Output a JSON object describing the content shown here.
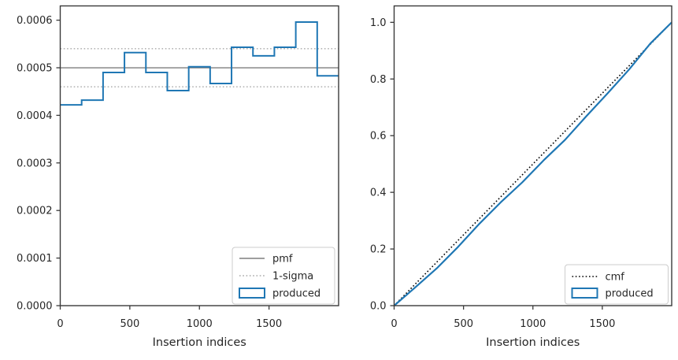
{
  "figure": {
    "background": "#ffffff",
    "spine_color": "#3a3a3a",
    "text_color": "#262626"
  },
  "chart_data": [
    {
      "type": "bar",
      "subtype": "step-histogram",
      "title": "",
      "xlabel": "Insertion indices",
      "ylabel": "",
      "xlim": [
        0,
        2000
      ],
      "ylim": [
        0,
        0.00063
      ],
      "grid": false,
      "xticks": {
        "values": [
          0,
          500,
          1000,
          1500
        ],
        "labels": [
          "0",
          "500",
          "1000",
          "1500"
        ]
      },
      "yticks": {
        "values": [
          0,
          0.0001,
          0.0002,
          0.0003,
          0.0004,
          0.0005,
          0.0006
        ],
        "labels": [
          "0.0000",
          "0.0001",
          "0.0002",
          "0.0003",
          "0.0004",
          "0.0005",
          "0.0006"
        ]
      },
      "series": [
        {
          "name": "pmf",
          "type": "hlines",
          "ys": [
            0.0005
          ],
          "color": "#7f7f7f",
          "dash": "solid",
          "width": 1.4
        },
        {
          "name": "1-sigma",
          "type": "hlines",
          "ys": [
            0.00054,
            0.00046
          ],
          "color": "#a8a8a8",
          "dash": "dotted",
          "width": 1.4
        },
        {
          "name": "produced",
          "type": "step",
          "edges": [
            0,
            153.8,
            307.7,
            461.5,
            615.4,
            769.2,
            923.1,
            1076.9,
            1230.8,
            1384.6,
            1538.5,
            1692.3,
            1846.2,
            2000
          ],
          "values": [
            0.000422,
            0.000432,
            0.00049,
            0.000532,
            0.00049,
            0.000452,
            0.000502,
            0.000467,
            0.000543,
            0.000525,
            0.000543,
            0.000596,
            0.000483
          ],
          "color": "#1f77b4",
          "dash": "solid",
          "width": 2
        }
      ],
      "legend": {
        "position": "lower right",
        "entries": [
          {
            "label": "pmf",
            "swatch": "line",
            "color": "#7f7f7f",
            "dash": "solid"
          },
          {
            "label": "1-sigma",
            "swatch": "line",
            "color": "#a8a8a8",
            "dash": "dotted"
          },
          {
            "label": "produced",
            "swatch": "patch",
            "color": "#1f77b4",
            "dash": "solid"
          }
        ]
      }
    },
    {
      "type": "line",
      "subtype": "cdf",
      "title": "",
      "xlabel": "Insertion indices",
      "ylabel": "",
      "xlim": [
        0,
        2000
      ],
      "ylim": [
        0,
        1.058
      ],
      "grid": false,
      "xticks": {
        "values": [
          0,
          500,
          1000,
          1500
        ],
        "labels": [
          "0",
          "500",
          "1000",
          "1500"
        ]
      },
      "yticks": {
        "values": [
          0,
          0.2,
          0.4,
          0.6,
          0.8,
          1.0
        ],
        "labels": [
          "0.0",
          "0.2",
          "0.4",
          "0.6",
          "0.8",
          "1.0"
        ]
      },
      "series": [
        {
          "name": "cmf",
          "type": "line",
          "points": [
            [
              0,
              0
            ],
            [
              2000,
              1.0
            ]
          ],
          "color": "#000000",
          "dash": "dotted",
          "width": 1.6
        },
        {
          "name": "produced",
          "type": "line",
          "points": [
            [
              0,
              0
            ],
            [
              153.8,
              0.0651
            ],
            [
              307.7,
              0.1319
            ],
            [
              461.5,
              0.2076
            ],
            [
              615.4,
              0.2897
            ],
            [
              769.2,
              0.3654
            ],
            [
              923.1,
              0.4351
            ],
            [
              1076.9,
              0.5126
            ],
            [
              1230.8,
              0.5847
            ],
            [
              1384.6,
              0.6685
            ],
            [
              1538.5,
              0.7496
            ],
            [
              1692.3,
              0.8334
            ],
            [
              1846.2,
              0.9254
            ],
            [
              2000,
              1.0
            ]
          ],
          "color": "#1f77b4",
          "dash": "solid",
          "width": 2.2
        }
      ],
      "legend": {
        "position": "lower right",
        "entries": [
          {
            "label": "cmf",
            "swatch": "line",
            "color": "#000000",
            "dash": "dotted"
          },
          {
            "label": "produced",
            "swatch": "patch",
            "color": "#1f77b4",
            "dash": "solid"
          }
        ]
      }
    }
  ]
}
